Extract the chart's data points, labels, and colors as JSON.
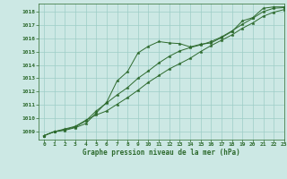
{
  "xlabel": "Graphe pression niveau de la mer (hPa)",
  "xlim": [
    -0.5,
    23
  ],
  "ylim": [
    1008.4,
    1018.6
  ],
  "yticks": [
    1009,
    1010,
    1011,
    1012,
    1013,
    1014,
    1015,
    1016,
    1017,
    1018
  ],
  "xticks": [
    0,
    1,
    2,
    3,
    4,
    5,
    6,
    7,
    8,
    9,
    10,
    11,
    12,
    13,
    14,
    15,
    16,
    17,
    18,
    19,
    20,
    21,
    22,
    23
  ],
  "background_color": "#cce8e4",
  "grid_color": "#9ecdc7",
  "line_color": "#2d6a2d",
  "line1": [
    1008.7,
    1009.0,
    1009.1,
    1009.3,
    1009.6,
    1010.4,
    1011.2,
    1012.8,
    1013.5,
    1014.9,
    1015.4,
    1015.75,
    1015.65,
    1015.6,
    1015.35,
    1015.55,
    1015.65,
    1016.05,
    1016.5,
    1017.3,
    1017.55,
    1018.25,
    1018.35,
    1018.35
  ],
  "line2": [
    1008.7,
    1009.0,
    1009.15,
    1009.35,
    1009.8,
    1010.55,
    1011.15,
    1011.75,
    1012.3,
    1013.0,
    1013.55,
    1014.15,
    1014.65,
    1015.05,
    1015.3,
    1015.5,
    1015.75,
    1016.1,
    1016.55,
    1017.05,
    1017.5,
    1018.0,
    1018.25,
    1018.3
  ],
  "line3": [
    1008.7,
    1009.0,
    1009.2,
    1009.4,
    1009.85,
    1010.25,
    1010.55,
    1011.05,
    1011.55,
    1012.1,
    1012.7,
    1013.2,
    1013.7,
    1014.1,
    1014.5,
    1015.0,
    1015.45,
    1015.85,
    1016.25,
    1016.75,
    1017.15,
    1017.65,
    1017.95,
    1018.15
  ]
}
